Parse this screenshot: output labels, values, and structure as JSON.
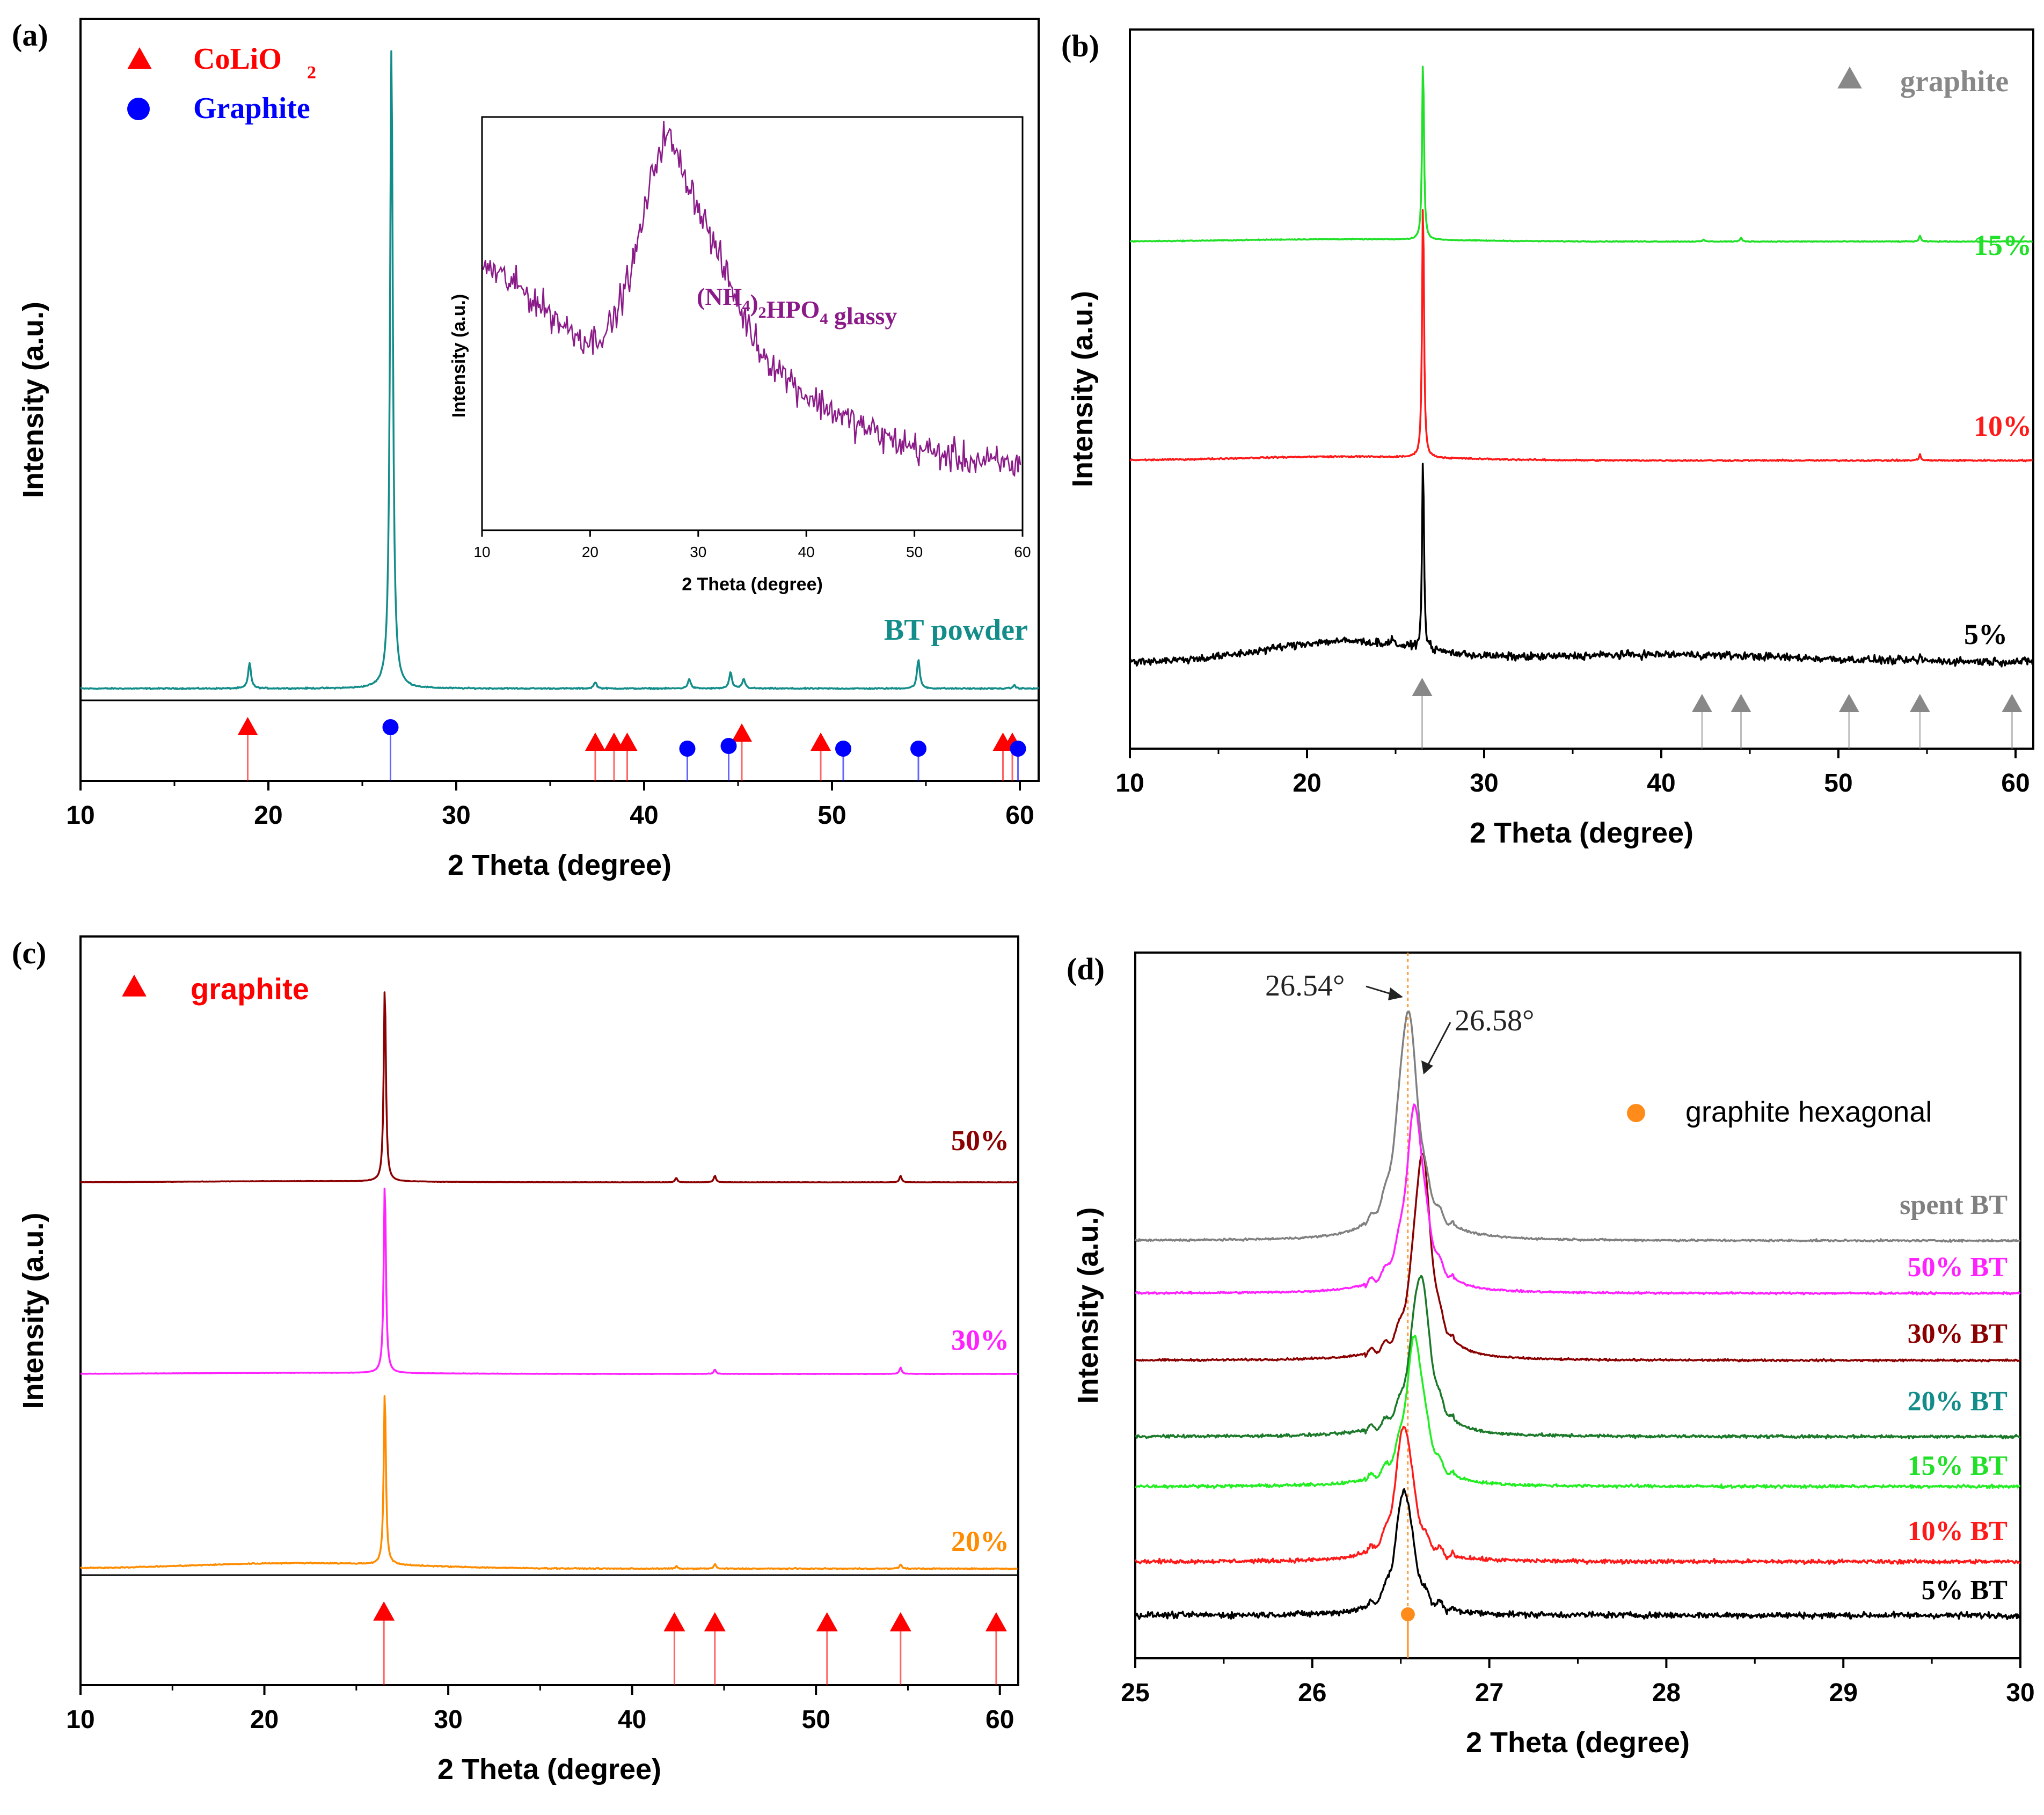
{
  "chart_data": [
    {
      "id": "a",
      "type": "line",
      "panel_label": "(a)",
      "xlabel": "2 Theta (degree)",
      "ylabel": "Intensity (a.u.)",
      "xlim": [
        10,
        61
      ],
      "xticks": [
        10,
        20,
        30,
        40,
        50,
        60
      ],
      "legend": [
        {
          "name": "CoLiO",
          "sub": "2",
          "marker": "triangle",
          "color": "#ff0000"
        },
        {
          "name": "Graphite",
          "marker": "circle",
          "color": "#0000ff"
        }
      ],
      "series": [
        {
          "name": "BT powder",
          "color": "#138d8a",
          "baseline": 0.0,
          "peaks": [
            [
              19.0,
              0.04
            ],
            [
              26.55,
              1.0
            ],
            [
              37.4,
              0.01
            ],
            [
              42.4,
              0.015
            ],
            [
              44.6,
              0.025
            ],
            [
              45.3,
              0.015
            ],
            [
              54.6,
              0.045
            ],
            [
              59.7,
              0.005
            ]
          ]
        }
      ],
      "reference_markers": [
        {
          "phase": "CoLiO2",
          "color": "#ff0000",
          "marker": "triangle",
          "positions": [
            18.9,
            37.4,
            38.4,
            39.1,
            45.2,
            49.4,
            59.1,
            59.6
          ]
        },
        {
          "phase": "Graphite",
          "color": "#0000ff",
          "marker": "circle",
          "positions": [
            26.5,
            42.3,
            44.5,
            50.6,
            54.6,
            59.9
          ]
        }
      ],
      "inset": {
        "type": "line",
        "xlabel": "2 Theta (degree)",
        "ylabel": "Intensity (a.u.)",
        "xlim": [
          10,
          60
        ],
        "xticks": [
          10,
          20,
          30,
          40,
          50,
          60
        ],
        "series": [
          {
            "name": "(NH4)2HPO4 glassy",
            "color": "#8b1a89",
            "x": [
              10,
              14,
              18,
              20,
              22,
              24,
              26,
              27,
              28,
              30,
              32,
              34,
              36,
              40,
              44,
              48,
              52,
              56,
              60
            ],
            "y": [
              0.62,
              0.55,
              0.46,
              0.43,
              0.47,
              0.62,
              0.86,
              0.94,
              0.88,
              0.76,
              0.63,
              0.5,
              0.4,
              0.3,
              0.24,
              0.19,
              0.16,
              0.14,
              0.13
            ]
          }
        ],
        "label_text": {
          "prefix": "(NH",
          "sub1": "4",
          "mid": ")",
          "sub2": "2",
          "mid2": "HPO",
          "sub3": "4",
          "suffix": " glassy"
        }
      }
    },
    {
      "id": "b",
      "type": "line",
      "panel_label": "(b)",
      "xlabel": "2 Theta (degree)",
      "ylabel": "Intensity (a.u.)",
      "xlim": [
        10,
        61
      ],
      "xticks": [
        10,
        20,
        30,
        40,
        50,
        60
      ],
      "legend": [
        {
          "name": "graphite",
          "marker": "triangle",
          "color": "#888888"
        }
      ],
      "series": [
        {
          "name": "15%",
          "color": "#20e028",
          "offset": 2,
          "broad": 0.01,
          "peaks": [
            [
              26.55,
              0.95
            ],
            [
              42.4,
              0.01
            ],
            [
              44.5,
              0.02
            ],
            [
              54.6,
              0.03
            ]
          ]
        },
        {
          "name": "10%",
          "color": "#ff1a1a",
          "offset": 1,
          "broad": 0.01,
          "peaks": [
            [
              26.55,
              0.83
            ],
            [
              54.6,
              0.02
            ]
          ]
        },
        {
          "name": "5%",
          "color": "#000000",
          "offset": 0,
          "broad": 0.07,
          "peaks": [
            [
              26.55,
              0.83
            ],
            [
              24.8,
              0.04
            ],
            [
              54.6,
              0.02
            ]
          ]
        }
      ],
      "reference_markers": [
        {
          "phase": "graphite",
          "color": "#888888",
          "marker": "triangle",
          "positions": [
            26.5,
            42.3,
            44.5,
            50.6,
            54.6,
            59.8
          ]
        }
      ]
    },
    {
      "id": "c",
      "type": "line",
      "panel_label": "(c)",
      "xlabel": "2 Theta (degree)",
      "ylabel": "Intensity (a.u.)",
      "xlim": [
        10,
        61
      ],
      "xticks": [
        10,
        20,
        30,
        40,
        50,
        60
      ],
      "legend": [
        {
          "name": "graphite",
          "marker": "triangle",
          "color": "#ff0000"
        }
      ],
      "series": [
        {
          "name": "50%",
          "color": "#8b0000",
          "offset": 2,
          "broad": 0.005,
          "peaks": [
            [
              26.55,
              0.9
            ],
            [
              42.4,
              0.02
            ],
            [
              44.5,
              0.03
            ],
            [
              54.6,
              0.03
            ]
          ]
        },
        {
          "name": "30%",
          "color": "#ff22ff",
          "offset": 1,
          "broad": 0.005,
          "peaks": [
            [
              26.55,
              0.9
            ],
            [
              44.5,
              0.02
            ],
            [
              54.6,
              0.03
            ]
          ]
        },
        {
          "name": "20%",
          "color": "#ff8c00",
          "offset": 0,
          "broad": 0.015,
          "peaks": [
            [
              26.55,
              0.78
            ],
            [
              42.4,
              0.01
            ],
            [
              44.5,
              0.02
            ],
            [
              54.6,
              0.02
            ]
          ]
        }
      ],
      "reference_markers": [
        {
          "phase": "graphite",
          "color": "#ff0000",
          "marker": "triangle",
          "positions": [
            26.5,
            42.3,
            44.5,
            50.6,
            54.6,
            59.8
          ]
        }
      ]
    },
    {
      "id": "d",
      "type": "line",
      "panel_label": "(d)",
      "xlabel": "2 Theta (degree)",
      "ylabel": "Intensity (a.u.)",
      "xlim": [
        25,
        30
      ],
      "xticks": [
        25,
        26,
        27,
        28,
        29,
        30
      ],
      "legend": [
        {
          "name": "graphite hexagonal",
          "marker": "circle",
          "color": "#ff8c1a"
        }
      ],
      "reference_line": {
        "x": 26.54,
        "color": "#ff8c1a"
      },
      "annotations": [
        {
          "text": "26.54°",
          "x": 26.54
        },
        {
          "text": "26.58°",
          "x": 26.58
        }
      ],
      "series": [
        {
          "name": "spent BT",
          "color": "#808080",
          "center": 26.54,
          "height": 0.62,
          "width": 0.07,
          "noise": 0.004,
          "label_color": "#808080"
        },
        {
          "name": "50% BT",
          "color": "#ff22ff",
          "center": 26.58,
          "height": 0.5,
          "width": 0.065,
          "noise": 0.004,
          "label_color": "#ff22ff"
        },
        {
          "name": "30% BT",
          "color": "#8b0000",
          "center": 26.62,
          "height": 0.56,
          "width": 0.06,
          "noise": 0.004,
          "label_color": "#8b0000"
        },
        {
          "name": "20% BT",
          "color": "#1b7a2a",
          "center": 26.61,
          "height": 0.44,
          "width": 0.065,
          "noise": 0.006,
          "label_color": "#138d8a"
        },
        {
          "name": "15% BT",
          "color": "#22ee22",
          "center": 26.58,
          "height": 0.4,
          "width": 0.065,
          "noise": 0.006,
          "label_color": "#20e028"
        },
        {
          "name": "10% BT",
          "color": "#ff1a1a",
          "center": 26.52,
          "height": 0.37,
          "width": 0.06,
          "noise": 0.008,
          "label_color": "#ff1a1a"
        },
        {
          "name": "5% BT",
          "color": "#000000",
          "center": 26.52,
          "height": 0.34,
          "width": 0.06,
          "noise": 0.012,
          "label_color": "#000000"
        }
      ]
    }
  ]
}
